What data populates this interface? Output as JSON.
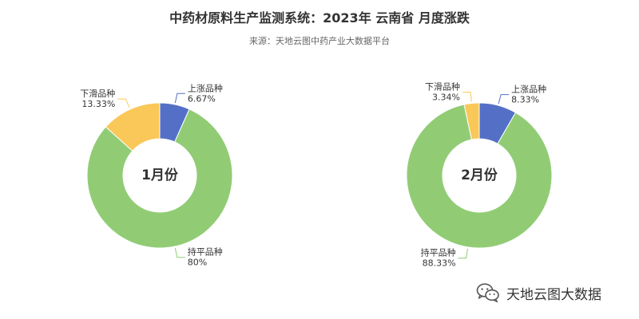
{
  "header": {
    "title": "中药材原料生产监测系统：2023年 云南省 月度涨跌",
    "subtitle": "来源：天地云图中药产业大数据平台"
  },
  "watermark": {
    "text": "天地云图大数据",
    "icon": "wechat-icon"
  },
  "colors": {
    "up": "#5470c6",
    "flat": "#91cc75",
    "down": "#fac858"
  },
  "chart_data": [
    {
      "type": "pie",
      "center_label": "1月份",
      "slices": [
        {
          "name": "上涨品种",
          "label": "6.67%",
          "value": 6.67,
          "color": "#5470c6"
        },
        {
          "name": "持平品种",
          "label": "80%",
          "value": 80,
          "color": "#91cc75"
        },
        {
          "name": "下滑品种",
          "label": "13.33%",
          "value": 13.33,
          "color": "#fac858"
        }
      ]
    },
    {
      "type": "pie",
      "center_label": "2月份",
      "slices": [
        {
          "name": "上涨品种",
          "label": "8.33%",
          "value": 8.33,
          "color": "#5470c6"
        },
        {
          "name": "持平品种",
          "label": "88.33%",
          "value": 88.33,
          "color": "#91cc75"
        },
        {
          "name": "下滑品种",
          "label": "3.34%",
          "value": 3.34,
          "color": "#fac858"
        }
      ]
    }
  ]
}
